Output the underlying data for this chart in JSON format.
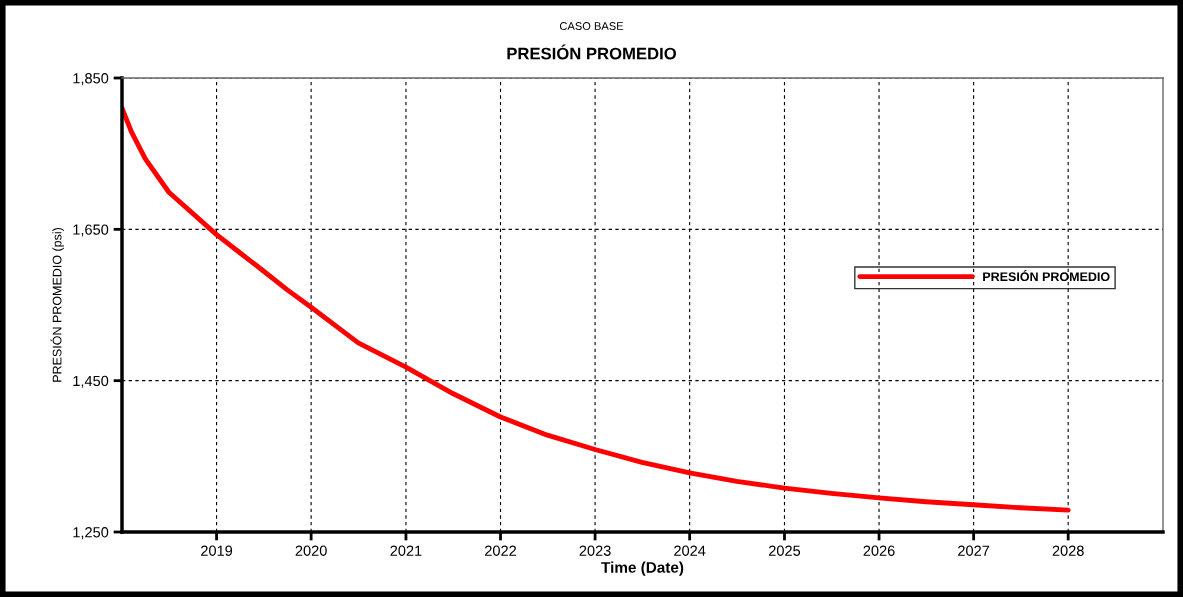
{
  "chart_data": {
    "type": "line",
    "subtitle": "CASO BASE",
    "title": "PRESIÓN PROMEDIO",
    "xlabel": "Time (Date)",
    "ylabel": "PRESIÓN PROMEDIO (psi)",
    "x": [
      "2018-01-01",
      "2018-02-06",
      "2018-04-01",
      "2018-07-01",
      "2019-01-01",
      "2019-04-01",
      "2019-07-01",
      "2019-10-01",
      "2020-01-01",
      "2020-07-01",
      "2021-01-01",
      "2021-07-01",
      "2022-01-01",
      "2022-07-01",
      "2023-01-01",
      "2023-07-01",
      "2024-01-01",
      "2024-07-01",
      "2025-01-01",
      "2025-07-01",
      "2026-01-01",
      "2026-07-01",
      "2027-01-01",
      "2027-07-01",
      "2028-01-01"
    ],
    "series": [
      {
        "name": "PRESIÓN PROMEDIO",
        "color": "#ff0000",
        "values": [
          1810,
          1779,
          1743,
          1699,
          1643,
          1619,
          1595,
          1570,
          1547,
          1500,
          1468,
          1433,
          1402,
          1378,
          1359,
          1342,
          1328,
          1317,
          1308,
          1301,
          1295,
          1290,
          1286,
          1282,
          1279
        ]
      }
    ],
    "xlim": [
      "2018-01-01",
      "2029-01-01"
    ],
    "xticks": [
      {
        "value": "2019-01-01",
        "label": "2019"
      },
      {
        "value": "2020-01-01",
        "label": "2020"
      },
      {
        "value": "2021-01-01",
        "label": "2021"
      },
      {
        "value": "2022-01-01",
        "label": "2022"
      },
      {
        "value": "2023-01-01",
        "label": "2023"
      },
      {
        "value": "2024-01-01",
        "label": "2024"
      },
      {
        "value": "2025-01-01",
        "label": "2025"
      },
      {
        "value": "2026-01-01",
        "label": "2026"
      },
      {
        "value": "2027-01-01",
        "label": "2027"
      },
      {
        "value": "2028-01-01",
        "label": "2028"
      }
    ],
    "ylim": [
      1250,
      1850
    ],
    "yticks": [
      {
        "value": 1250,
        "label": "1,250"
      },
      {
        "value": 1650,
        "label": "1,650"
      },
      {
        "value": 1450,
        "label": "1,450"
      },
      {
        "value": 1850,
        "label": "1,850"
      }
    ],
    "grid": true,
    "legend": "right",
    "marker": "none",
    "line_style": "solid"
  }
}
